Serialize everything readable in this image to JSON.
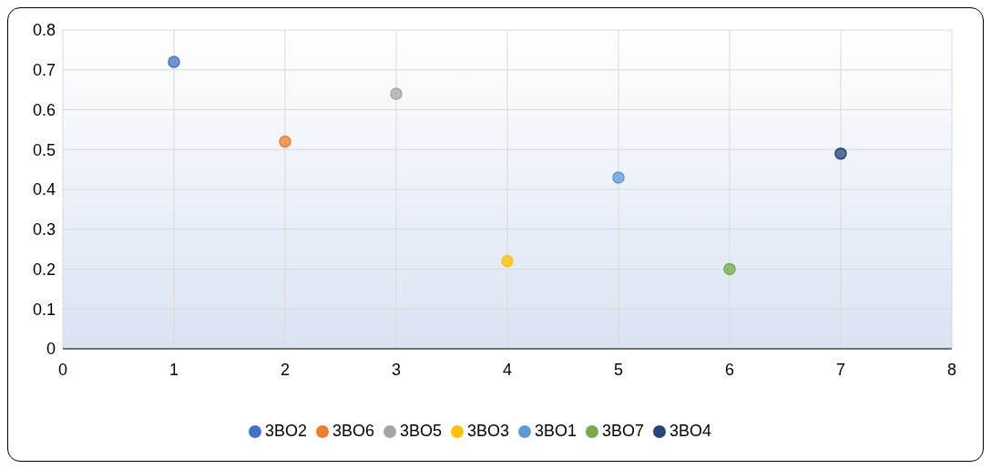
{
  "chart_data": {
    "type": "scatter",
    "xlim": [
      0,
      8
    ],
    "xticks": [
      0,
      1,
      2,
      3,
      4,
      5,
      6,
      7,
      8
    ],
    "ylim": [
      0,
      0.8
    ],
    "yticks": [
      0,
      0.1,
      0.2,
      0.3,
      0.4,
      0.5,
      0.6,
      0.7,
      0.8
    ],
    "grid": true,
    "legend": "bottom",
    "marker": "circle",
    "series": [
      {
        "name": "3BO2",
        "color": "#4472c4",
        "x": [
          1
        ],
        "values": [
          0.72
        ]
      },
      {
        "name": "3BO6",
        "color": "#ed7d31",
        "x": [
          2
        ],
        "values": [
          0.52
        ]
      },
      {
        "name": "3BO5",
        "color": "#a5a5a5",
        "x": [
          3
        ],
        "values": [
          0.64
        ]
      },
      {
        "name": "3BO3",
        "color": "#ffc000",
        "x": [
          4
        ],
        "values": [
          0.22
        ]
      },
      {
        "name": "3BO1",
        "color": "#5b9bd5",
        "x": [
          5
        ],
        "values": [
          0.43
        ]
      },
      {
        "name": "3BO7",
        "color": "#70ad47",
        "x": [
          6
        ],
        "values": [
          0.2
        ]
      },
      {
        "name": "3BO4",
        "color": "#264478",
        "x": [
          7
        ],
        "values": [
          0.49
        ]
      }
    ]
  }
}
